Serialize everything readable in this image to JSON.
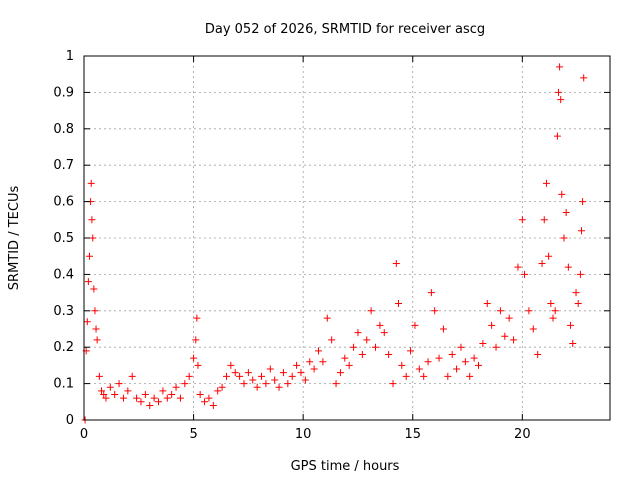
{
  "chart_data": {
    "type": "scatter",
    "title": "Day 052 of 2026, SRMTID for receiver ascg",
    "xlabel": "GPS time / hours",
    "ylabel": "SRMTID / TECUs",
    "xlim": [
      0,
      24
    ],
    "ylim": [
      0,
      1
    ],
    "xticks": [
      0,
      5,
      10,
      15,
      20
    ],
    "yticks": [
      0,
      0.1,
      0.2,
      0.3,
      0.4,
      0.5,
      0.6,
      0.7,
      0.8,
      0.9,
      1
    ],
    "xtick_labels": [
      "0",
      "5",
      "10",
      "15",
      "20"
    ],
    "ytick_labels": [
      "0",
      "0.1",
      "0.2",
      "0.3",
      "0.4",
      "0.5",
      "0.6",
      "0.7",
      "0.8",
      "0.9",
      "1"
    ],
    "grid": true,
    "marker": "+",
    "color": "#ff0000",
    "series": [
      {
        "name": "SRMTID",
        "points": [
          [
            0.05,
            0.0
          ],
          [
            0.1,
            0.19
          ],
          [
            0.15,
            0.27
          ],
          [
            0.2,
            0.38
          ],
          [
            0.25,
            0.45
          ],
          [
            0.3,
            0.6
          ],
          [
            0.33,
            0.65
          ],
          [
            0.36,
            0.55
          ],
          [
            0.4,
            0.5
          ],
          [
            0.45,
            0.36
          ],
          [
            0.5,
            0.3
          ],
          [
            0.55,
            0.25
          ],
          [
            0.6,
            0.22
          ],
          [
            0.7,
            0.12
          ],
          [
            0.8,
            0.08
          ],
          [
            0.9,
            0.07
          ],
          [
            1.0,
            0.06
          ],
          [
            1.2,
            0.09
          ],
          [
            1.4,
            0.07
          ],
          [
            1.6,
            0.1
          ],
          [
            1.8,
            0.06
          ],
          [
            2.0,
            0.08
          ],
          [
            2.2,
            0.12
          ],
          [
            2.4,
            0.06
          ],
          [
            2.6,
            0.05
          ],
          [
            2.8,
            0.07
          ],
          [
            3.0,
            0.04
          ],
          [
            3.2,
            0.06
          ],
          [
            3.4,
            0.05
          ],
          [
            3.6,
            0.08
          ],
          [
            3.8,
            0.06
          ],
          [
            4.0,
            0.07
          ],
          [
            4.2,
            0.09
          ],
          [
            4.4,
            0.06
          ],
          [
            4.6,
            0.1
          ],
          [
            4.8,
            0.12
          ],
          [
            5.0,
            0.17
          ],
          [
            5.1,
            0.22
          ],
          [
            5.15,
            0.28
          ],
          [
            5.2,
            0.15
          ],
          [
            5.3,
            0.07
          ],
          [
            5.5,
            0.05
          ],
          [
            5.7,
            0.06
          ],
          [
            5.9,
            0.04
          ],
          [
            6.1,
            0.08
          ],
          [
            6.3,
            0.09
          ],
          [
            6.5,
            0.12
          ],
          [
            6.7,
            0.15
          ],
          [
            6.9,
            0.13
          ],
          [
            7.1,
            0.12
          ],
          [
            7.3,
            0.1
          ],
          [
            7.5,
            0.13
          ],
          [
            7.7,
            0.11
          ],
          [
            7.9,
            0.09
          ],
          [
            8.1,
            0.12
          ],
          [
            8.3,
            0.1
          ],
          [
            8.5,
            0.14
          ],
          [
            8.7,
            0.11
          ],
          [
            8.9,
            0.09
          ],
          [
            9.1,
            0.13
          ],
          [
            9.3,
            0.1
          ],
          [
            9.5,
            0.12
          ],
          [
            9.7,
            0.15
          ],
          [
            9.9,
            0.13
          ],
          [
            10.1,
            0.11
          ],
          [
            10.3,
            0.16
          ],
          [
            10.5,
            0.14
          ],
          [
            10.7,
            0.19
          ],
          [
            10.9,
            0.16
          ],
          [
            11.1,
            0.28
          ],
          [
            11.3,
            0.22
          ],
          [
            11.5,
            0.1
          ],
          [
            11.7,
            0.13
          ],
          [
            11.9,
            0.17
          ],
          [
            12.1,
            0.15
          ],
          [
            12.3,
            0.2
          ],
          [
            12.5,
            0.24
          ],
          [
            12.7,
            0.18
          ],
          [
            12.9,
            0.22
          ],
          [
            13.1,
            0.3
          ],
          [
            13.3,
            0.2
          ],
          [
            13.5,
            0.26
          ],
          [
            13.7,
            0.24
          ],
          [
            13.9,
            0.18
          ],
          [
            14.1,
            0.1
          ],
          [
            14.25,
            0.43
          ],
          [
            14.35,
            0.32
          ],
          [
            14.5,
            0.15
          ],
          [
            14.7,
            0.12
          ],
          [
            14.9,
            0.19
          ],
          [
            15.1,
            0.26
          ],
          [
            15.3,
            0.14
          ],
          [
            15.5,
            0.12
          ],
          [
            15.7,
            0.16
          ],
          [
            15.85,
            0.35
          ],
          [
            16.0,
            0.3
          ],
          [
            16.2,
            0.17
          ],
          [
            16.4,
            0.25
          ],
          [
            16.6,
            0.12
          ],
          [
            16.8,
            0.18
          ],
          [
            17.0,
            0.14
          ],
          [
            17.2,
            0.2
          ],
          [
            17.4,
            0.16
          ],
          [
            17.6,
            0.12
          ],
          [
            17.8,
            0.17
          ],
          [
            18.0,
            0.15
          ],
          [
            18.2,
            0.21
          ],
          [
            18.4,
            0.32
          ],
          [
            18.6,
            0.26
          ],
          [
            18.8,
            0.2
          ],
          [
            19.0,
            0.3
          ],
          [
            19.2,
            0.23
          ],
          [
            19.4,
            0.28
          ],
          [
            19.6,
            0.22
          ],
          [
            19.8,
            0.42
          ],
          [
            20.0,
            0.55
          ],
          [
            20.1,
            0.4
          ],
          [
            20.3,
            0.3
          ],
          [
            20.5,
            0.25
          ],
          [
            20.7,
            0.18
          ],
          [
            20.9,
            0.43
          ],
          [
            21.0,
            0.55
          ],
          [
            21.1,
            0.65
          ],
          [
            21.2,
            0.45
          ],
          [
            21.3,
            0.32
          ],
          [
            21.4,
            0.28
          ],
          [
            21.5,
            0.3
          ],
          [
            21.6,
            0.78
          ],
          [
            21.65,
            0.9
          ],
          [
            21.7,
            0.97
          ],
          [
            21.75,
            0.88
          ],
          [
            21.8,
            0.62
          ],
          [
            21.9,
            0.5
          ],
          [
            22.0,
            0.57
          ],
          [
            22.1,
            0.42
          ],
          [
            22.2,
            0.26
          ],
          [
            22.3,
            0.21
          ],
          [
            22.45,
            0.35
          ],
          [
            22.55,
            0.32
          ],
          [
            22.65,
            0.4
          ],
          [
            22.7,
            0.52
          ],
          [
            22.75,
            0.6
          ],
          [
            22.8,
            0.94
          ]
        ]
      }
    ]
  }
}
